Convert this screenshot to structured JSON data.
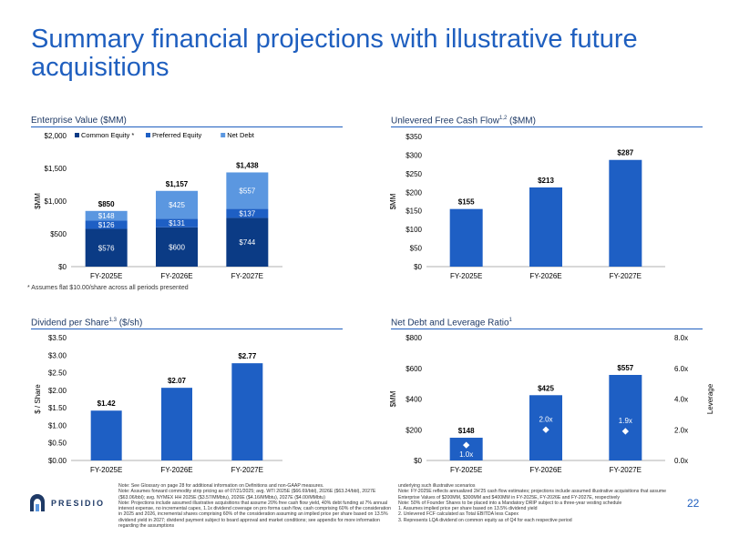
{
  "page": {
    "title": "Summary financial projections with illustrative future acquisitions",
    "page_number": "22",
    "logo_text": "PRESIDIO"
  },
  "colors": {
    "title": "#1f5fbf",
    "common_equity": "#0b3b85",
    "preferred_equity": "#1e5fc4",
    "net_debt": "#5b97e0",
    "bar": "#1e5fc4",
    "marker": "#ffffff"
  },
  "footnote_star": "*  Assumes flat $10.00/share across all periods presented",
  "notes_left": [
    "Note: See Glossary on page 28 for additional information on Definitions and non-GAAP measures.",
    "Note: Assumes forward commodity strip pricing as of 07/21/2025; avg. WTI 2025E ($66.69/bbl), 2026E ($63.24/bbl), 2027E ($63.06/bbl); avg. NYMEX HH 2025E ($3.57/MMbtu), 2026E ($4.16/MMbtu), 2027E ($4.00/MMbtu)",
    "Note: Projections include assumed illustrative acquisitions that assume 20% free cash flow yield, 40% debt funding at 7% annual interest expense, no incremental capex, 1.1x dividend coverage on pro forma cash flow, cash comprising 60% of the consideration in 2025 and 2026, incremental shares comprising 60% of the consideration assuming an implied price per share based on 13.5% dividend yield in 2027; dividend payment subject to board approval and market conditions; see appendix for more information regarding the assumptions"
  ],
  "notes_right": [
    "underlying such illustrative scenarios",
    "Note: FY-2025E reflects annualized 2H'25 cash flow estimates; projections include assumed illustrative acquisitions that assume Enterprise Values of $200MM, $300MM and $400MM in FY-2025E, FY-2026E and FY-2027E, respectively",
    "Note: 50% of Founder Shares to be placed into a Mandatory DRIP subject to a three-year vesting schedule",
    "1.      Assumes implied price per share based on 13.5% dividend yield",
    "2.      Unlevered FCF calculated as Total EBITDA less Capex",
    "3.      Represents LQA dividend on common equity as of Q4 for each respective period"
  ],
  "chart_data": [
    {
      "type": "bar",
      "stacked": true,
      "title": "Enterprise Value ($MM)",
      "ylabel": "$MM",
      "ylim": [
        0,
        2000
      ],
      "yticks": [
        0,
        500,
        1000,
        1500,
        2000
      ],
      "ytick_labels": [
        "$0",
        "$500",
        "$1,000",
        "$1,500",
        "$2,000"
      ],
      "categories": [
        "FY-2025E",
        "FY-2026E",
        "FY-2027E"
      ],
      "series": [
        {
          "name": "Common Equity",
          "legend_label": "Common Equity *",
          "values": [
            576,
            600,
            744
          ],
          "labels": [
            "$576",
            "$600",
            "$744"
          ]
        },
        {
          "name": "Preferred Equity",
          "legend_label": "Preferred Equity",
          "values": [
            126,
            131,
            137
          ],
          "labels": [
            "$126",
            "$131",
            "$137"
          ]
        },
        {
          "name": "Net Debt",
          "legend_label": "Net Debt",
          "values": [
            148,
            425,
            557
          ],
          "labels": [
            "$148",
            "$425",
            "$557"
          ]
        }
      ],
      "totals": [
        850,
        1157,
        1438
      ],
      "total_labels": [
        "$850",
        "$1,157",
        "$1,438"
      ],
      "legend": "top-left"
    },
    {
      "type": "bar",
      "title": "Unlevered Free Cash Flow",
      "title_sup": "1,2",
      "title_suffix": " ($MM)",
      "ylabel": "$MM",
      "ylim": [
        0,
        350
      ],
      "yticks": [
        0,
        50,
        100,
        150,
        200,
        250,
        300,
        350
      ],
      "ytick_labels": [
        "$0",
        "$50",
        "$100",
        "$150",
        "$200",
        "$250",
        "$300",
        "$350"
      ],
      "categories": [
        "FY-2025E",
        "FY-2026E",
        "FY-2027E"
      ],
      "values": [
        155,
        213,
        287
      ],
      "labels": [
        "$155",
        "$213",
        "$287"
      ]
    },
    {
      "type": "bar",
      "title": "Dividend per Share",
      "title_sup": "1,3",
      "title_suffix": " ($/sh)",
      "ylabel": "$ / Share",
      "ylim": [
        0,
        3.5
      ],
      "yticks": [
        0,
        0.5,
        1,
        1.5,
        2,
        2.5,
        3,
        3.5
      ],
      "ytick_labels": [
        "$0.00",
        "$0.50",
        "$1.00",
        "$1.50",
        "$2.00",
        "$2.50",
        "$3.00",
        "$3.50"
      ],
      "categories": [
        "FY-2025E",
        "FY-2026E",
        "FY-2027E"
      ],
      "values": [
        1.42,
        2.07,
        2.77
      ],
      "labels": [
        "$1.42",
        "$2.07",
        "$2.77"
      ]
    },
    {
      "type": "bar",
      "title": "Net Debt and Leverage Ratio",
      "title_sup": "1",
      "title_suffix": "",
      "ylabel": "$MM",
      "ylabel_right": "Leverage",
      "ylim": [
        0,
        800
      ],
      "yticks": [
        0,
        200,
        400,
        600,
        800
      ],
      "ytick_labels": [
        "$0",
        "$200",
        "$400",
        "$600",
        "$800"
      ],
      "ylim_right": [
        0,
        8
      ],
      "yticks_right": [
        0,
        2,
        4,
        6,
        8
      ],
      "ytick_labels_right": [
        "0.0x",
        "2.0x",
        "4.0x",
        "6.0x",
        "8.0x"
      ],
      "categories": [
        "FY-2025E",
        "FY-2026E",
        "FY-2027E"
      ],
      "values": [
        148,
        425,
        557
      ],
      "labels": [
        "$148",
        "$425",
        "$557"
      ],
      "leverage": [
        1.0,
        2.0,
        1.9
      ],
      "leverage_labels": [
        "1.0x",
        "2.0x",
        "1.9x"
      ]
    }
  ]
}
